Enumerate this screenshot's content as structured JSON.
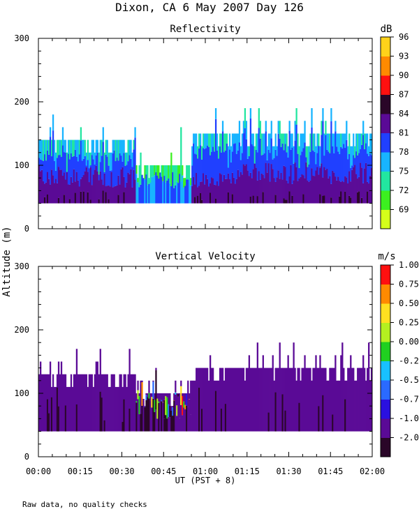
{
  "figure": {
    "title": "Dixon, CA  6 May 2007  Day 126",
    "ylabel": "Altitude (m)",
    "xlabel": "UT  (PST + 8)",
    "footnote": "Raw data, no quality checks"
  },
  "chart_data": [
    {
      "type": "heatmap",
      "title": "Reflectivity",
      "unit": "dB",
      "xlim": [
        0,
        120
      ],
      "ylim": [
        0,
        300
      ],
      "x_ticks": [
        0,
        15,
        30,
        45,
        60,
        75,
        90,
        105,
        120
      ],
      "x_tick_labels": [
        "00:00",
        "00:15",
        "00:30",
        "00:45",
        "01:00",
        "01:15",
        "01:30",
        "01:45",
        "02:00"
      ],
      "y_ticks": [
        0,
        100,
        200,
        300
      ],
      "y_tick_labels": [
        "0",
        "100",
        "200",
        "300"
      ],
      "colorbar_ticks": [
        "69",
        "72",
        "75",
        "78",
        "81",
        "84",
        "87",
        "90",
        "93",
        "96"
      ],
      "colorbar_colors": [
        "#d4ff1a",
        "#3cf020",
        "#22e6a0",
        "#18b4ff",
        "#2040ff",
        "#5a0a96",
        "#2a0628",
        "#ff1010",
        "#ff8a00",
        "#ffd21a"
      ],
      "data_bottom_m": 40,
      "segments": [
        {
          "t_start": 0,
          "t_end": 35,
          "top_m": 140,
          "dominant_dB": 81,
          "core_dB": 84
        },
        {
          "t_start": 35,
          "t_end": 55,
          "top_m": 100,
          "dominant_dB": 75,
          "core_dB": 81
        },
        {
          "t_start": 55,
          "t_end": 120,
          "top_m": 150,
          "dominant_dB": 81,
          "core_dB": 84
        }
      ]
    },
    {
      "type": "heatmap",
      "title": "Vertical Velocity",
      "unit": "m/s",
      "xlim": [
        0,
        120
      ],
      "ylim": [
        0,
        300
      ],
      "x_ticks": [
        0,
        15,
        30,
        45,
        60,
        75,
        90,
        105,
        120
      ],
      "x_tick_labels": [
        "00:00",
        "00:15",
        "00:30",
        "00:45",
        "01:00",
        "01:15",
        "01:30",
        "01:45",
        "02:00"
      ],
      "y_ticks": [
        0,
        100,
        200,
        300
      ],
      "y_tick_labels": [
        "0",
        "100",
        "200",
        "300"
      ],
      "colorbar_ticks": [
        "-2.00",
        "-1.00",
        "-0.75",
        "-0.50",
        "-0.25",
        "0.00",
        "0.25",
        "0.50",
        "0.75",
        "1.00"
      ],
      "colorbar_colors": [
        "#2a0628",
        "#5a0a96",
        "#2a10e0",
        "#2a6aff",
        "#18c0ff",
        "#20d020",
        "#b4f020",
        "#ffe020",
        "#ff8a00",
        "#ff1010"
      ],
      "data_bottom_m": 40,
      "segments": [
        {
          "t_start": 0,
          "t_end": 35,
          "top_m": 130,
          "dominant_ms": -1.0
        },
        {
          "t_start": 35,
          "t_end": 55,
          "top_m": 100,
          "dominant_ms": -1.0,
          "mixed": true
        },
        {
          "t_start": 55,
          "t_end": 120,
          "top_m": 140,
          "dominant_ms": -1.0
        }
      ]
    }
  ]
}
